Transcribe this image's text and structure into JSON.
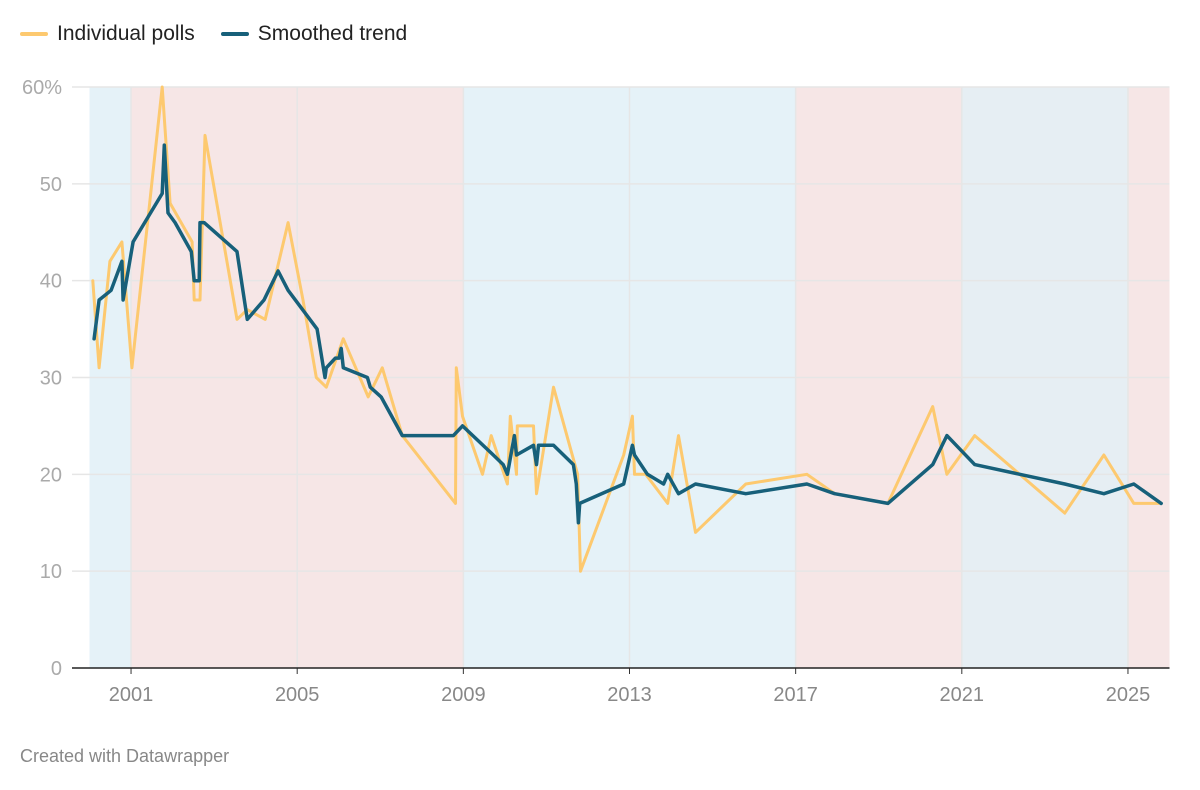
{
  "chart_data": {
    "type": "line",
    "title": "",
    "xlabel": "",
    "ylabel": "",
    "xlim": [
      2000,
      2026
    ],
    "ylim": [
      0,
      60
    ],
    "x_ticks": [
      2001,
      2005,
      2009,
      2013,
      2017,
      2021,
      2025
    ],
    "x_tick_labels": [
      "2001",
      "2005",
      "2009",
      "2013",
      "2017",
      "2021",
      "2025"
    ],
    "y_ticks": [
      0,
      10,
      20,
      30,
      40,
      50,
      60
    ],
    "y_tick_labels": [
      "0",
      "10",
      "20",
      "30",
      "40",
      "50",
      "60%"
    ],
    "grid": true,
    "legend_position": "top-left",
    "background_bands": [
      {
        "from": 2000,
        "to": 2001,
        "color": "#e5f2f8"
      },
      {
        "from": 2001,
        "to": 2009,
        "color": "#f6e6e6"
      },
      {
        "from": 2009,
        "to": 2017,
        "color": "#e5f2f8"
      },
      {
        "from": 2017,
        "to": 2021,
        "color": "#f6e6e6"
      },
      {
        "from": 2021,
        "to": 2025,
        "color": "#e6eef3"
      },
      {
        "from": 2025,
        "to": 2026,
        "color": "#f6e6e6"
      }
    ],
    "series": [
      {
        "name": "Individual polls",
        "color": "#fdc96f",
        "x": [
          2000.08,
          2000.23,
          2000.49,
          2000.78,
          2001.02,
          2001.75,
          2001.94,
          2002.47,
          2002.52,
          2002.66,
          2002.78,
          2003.55,
          2003.8,
          2004.23,
          2004.78,
          2005.14,
          2005.46,
          2005.7,
          2006.11,
          2006.71,
          2007.05,
          2007.53,
          2008.81,
          2008.83,
          2008.98,
          2009.46,
          2009.67,
          2010.06,
          2010.13,
          2010.28,
          2010.3,
          2010.69,
          2010.76,
          2011.17,
          2011.75,
          2011.82,
          2012.86,
          2013.07,
          2013.12,
          2013.39,
          2013.92,
          2014.18,
          2014.59,
          2015.8,
          2017.27,
          2017.94,
          2019.22,
          2020.3,
          2020.64,
          2021.31,
          2023.48,
          2024.42,
          2025.14,
          2025.8
        ],
        "y": [
          40,
          31,
          42,
          44,
          31,
          60,
          48,
          44,
          38,
          38,
          55,
          36,
          37,
          36,
          46,
          38,
          30,
          29,
          34,
          28,
          31,
          24,
          17,
          31,
          26,
          20,
          24,
          19,
          26,
          20,
          25,
          25,
          18,
          29,
          20,
          10,
          22,
          26,
          20,
          20,
          17,
          24,
          14,
          19,
          20,
          18,
          17,
          27,
          20,
          24,
          16,
          22,
          17,
          17
        ]
      },
      {
        "name": "Smoothed trend",
        "color": "#17607a",
        "x": [
          2000.11,
          2000.23,
          2000.52,
          2000.78,
          2000.81,
          2001.05,
          2001.75,
          2001.8,
          2001.89,
          2002.06,
          2002.45,
          2002.52,
          2002.64,
          2002.66,
          2002.76,
          2003.55,
          2003.8,
          2004.2,
          2004.54,
          2004.78,
          2005.48,
          2005.67,
          2005.7,
          2005.92,
          2006.01,
          2006.06,
          2006.11,
          2006.69,
          2006.76,
          2007.02,
          2007.53,
          2008.76,
          2008.98,
          2009.72,
          2009.96,
          2010.06,
          2010.23,
          2010.28,
          2010.69,
          2010.76,
          2010.81,
          2011.17,
          2011.65,
          2011.72,
          2011.77,
          2011.8,
          2012.86,
          2013.07,
          2013.12,
          2013.43,
          2013.82,
          2013.92,
          2014.18,
          2014.59,
          2015.8,
          2017.27,
          2017.94,
          2019.22,
          2020.3,
          2020.64,
          2021.31,
          2023.48,
          2024.42,
          2025.14,
          2025.8
        ],
        "y": [
          34,
          38,
          39,
          42,
          38,
          44,
          49,
          54,
          47,
          46,
          43,
          40,
          40,
          46,
          46,
          43,
          36,
          38,
          41,
          39,
          35,
          30,
          31,
          32,
          32,
          33,
          31,
          30,
          29,
          28,
          24,
          24,
          25,
          22,
          21,
          20,
          24,
          22,
          23,
          21,
          23,
          23,
          21,
          19,
          15,
          17,
          19,
          23,
          22,
          20,
          19,
          20,
          18,
          19,
          18,
          19,
          18,
          17,
          21,
          24,
          21,
          19,
          18,
          19,
          17
        ]
      }
    ]
  },
  "footer": "Created with Datawrapper"
}
